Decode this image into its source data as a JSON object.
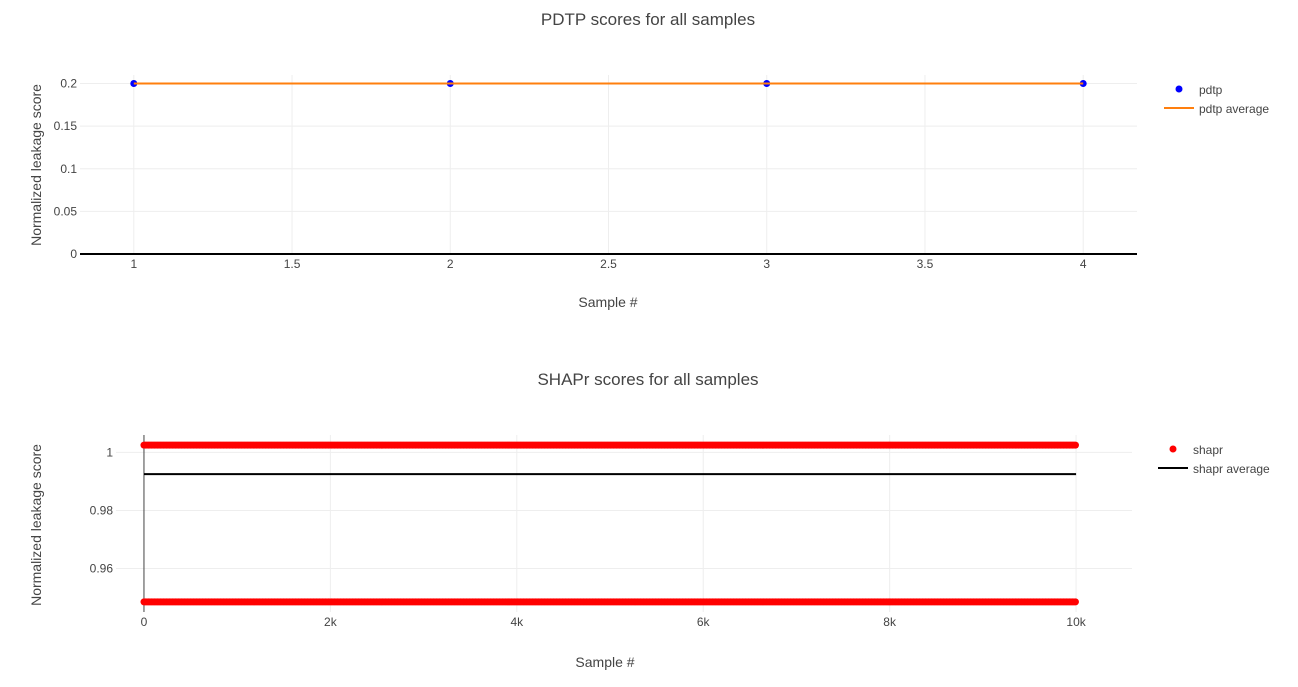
{
  "chart_data": [
    {
      "type": "scatter",
      "title": "PDTP scores for all samples",
      "xlabel": "Sample #",
      "ylabel": "Normalized leakage score",
      "xlim": [
        0.83,
        4.17
      ],
      "ylim": [
        0,
        0.21
      ],
      "x_ticks": [
        1,
        1.5,
        2,
        2.5,
        3,
        3.5,
        4
      ],
      "x_tick_labels": [
        "1",
        "1.5",
        "2",
        "2.5",
        "3",
        "3.5",
        "4"
      ],
      "y_ticks": [
        0,
        0.05,
        0.1,
        0.15,
        0.2
      ],
      "y_tick_labels": [
        "0",
        "0.05",
        "0.1",
        "0.15",
        "0.2"
      ],
      "grid": true,
      "legend_position": "top-right",
      "series": [
        {
          "name": "pdtp",
          "mode": "markers",
          "color": "#0000ff",
          "x": [
            1,
            2,
            3,
            4
          ],
          "y": [
            0.2,
            0.2,
            0.2,
            0.2
          ]
        },
        {
          "name": "pdtp average",
          "mode": "lines",
          "color": "#ff7f0e",
          "x": [
            1,
            4
          ],
          "y": [
            0.2,
            0.2
          ]
        }
      ]
    },
    {
      "type": "scatter",
      "title": "SHAPr scores for all samples",
      "xlabel": "Sample #",
      "ylabel": "Normalized leakage score",
      "xlim": [
        -300,
        10600
      ],
      "ylim": [
        0.945,
        1.006
      ],
      "x_ticks": [
        0,
        2000,
        4000,
        6000,
        8000,
        10000
      ],
      "x_tick_labels": [
        "0",
        "2k",
        "4k",
        "6k",
        "8k",
        "10k"
      ],
      "y_ticks": [
        0.96,
        0.98,
        1
      ],
      "y_tick_labels": [
        "0.96",
        "0.98",
        "1"
      ],
      "grid": true,
      "legend_position": "top-right",
      "series": [
        {
          "name": "shapr",
          "mode": "markers",
          "color": "#ff0000",
          "x_range": [
            0,
            10000
          ],
          "levels": [
            1.0025,
            0.9485
          ]
        },
        {
          "name": "shapr average",
          "mode": "lines",
          "color": "#000000",
          "x": [
            0,
            10000
          ],
          "y": [
            0.9925,
            0.9925
          ]
        }
      ]
    }
  ]
}
